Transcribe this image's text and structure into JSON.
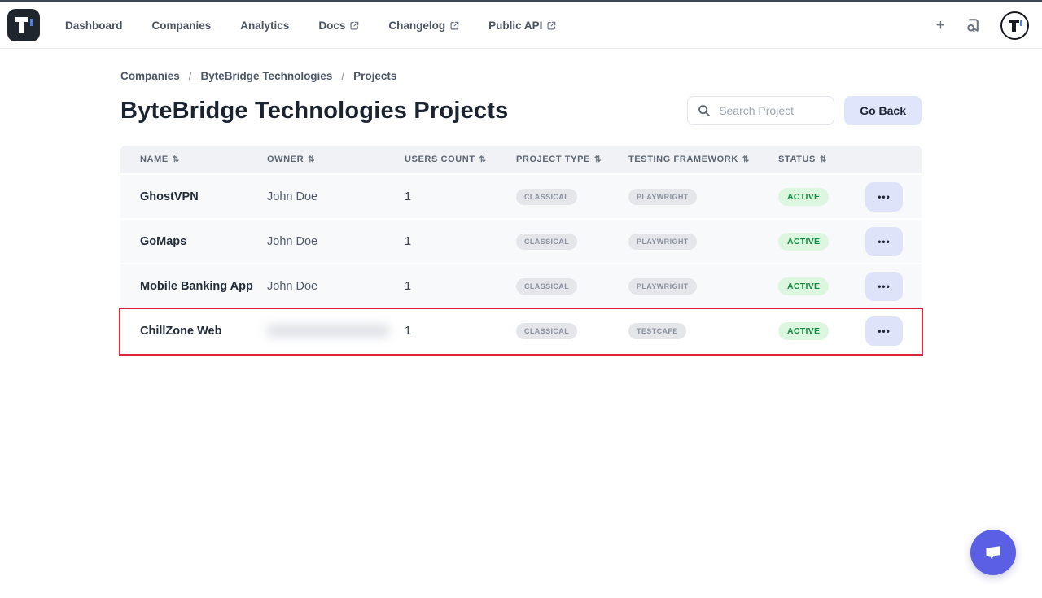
{
  "nav": {
    "items": [
      {
        "label": "Dashboard",
        "external": false
      },
      {
        "label": "Companies",
        "external": false
      },
      {
        "label": "Analytics",
        "external": false
      },
      {
        "label": "Docs",
        "external": true
      },
      {
        "label": "Changelog",
        "external": true
      },
      {
        "label": "Public API",
        "external": true
      }
    ]
  },
  "icons": {
    "plus": "+",
    "sort": "⇅",
    "ellipsis": "•••",
    "search": "magnifier",
    "doc_search": "document-with-magnifier",
    "chat": "speech-bubble",
    "external": "arrow-out-of-box"
  },
  "breadcrumb": {
    "items": [
      "Companies",
      "ByteBridge Technologies",
      "Projects"
    ],
    "separator": "/"
  },
  "page": {
    "title": "ByteBridge Technologies Projects"
  },
  "search": {
    "placeholder": "Search Project",
    "value": ""
  },
  "go_back": {
    "label": "Go Back"
  },
  "table": {
    "columns": [
      "NAME",
      "OWNER",
      "USERS COUNT",
      "PROJECT TYPE",
      "TESTING FRAMEWORK",
      "STATUS"
    ],
    "rows": [
      {
        "name": "GhostVPN",
        "owner": "John Doe",
        "owner_redacted": false,
        "users_count": "1",
        "project_type": "CLASSICAL",
        "testing_framework": "PLAYWRIGHT",
        "status": "ACTIVE",
        "highlighted": false
      },
      {
        "name": "GoMaps",
        "owner": "John Doe",
        "owner_redacted": false,
        "users_count": "1",
        "project_type": "CLASSICAL",
        "testing_framework": "PLAYWRIGHT",
        "status": "ACTIVE",
        "highlighted": false
      },
      {
        "name": "Mobile Banking App",
        "owner": "John Doe",
        "owner_redacted": false,
        "users_count": "1",
        "project_type": "CLASSICAL",
        "testing_framework": "PLAYWRIGHT",
        "status": "ACTIVE",
        "highlighted": false
      },
      {
        "name": "ChillZone Web",
        "owner": "",
        "owner_redacted": true,
        "users_count": "1",
        "project_type": "CLASSICAL",
        "testing_framework": "TESTCAFE",
        "status": "ACTIVE",
        "highlighted": true
      }
    ]
  },
  "colors": {
    "top_strip": "#3f4752",
    "brand_dark": "#20262e",
    "brand_blue_accent": "#4f7df0",
    "accent_lavender": "#dee3fa",
    "status_bg": "#dcf6e0",
    "status_text": "#168a42",
    "pill_bg": "#e4e6ea",
    "pill_text": "#8a919e",
    "highlight_red": "#e0233c",
    "chat_purple": "#5b5fe3"
  }
}
